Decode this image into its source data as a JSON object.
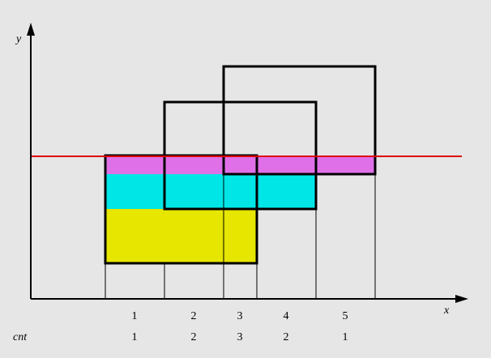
{
  "axes": {
    "x_label": "x",
    "y_label": "y"
  },
  "row_label": "cnt",
  "segments": [
    {
      "index": "1",
      "cnt": "1"
    },
    {
      "index": "2",
      "cnt": "2"
    },
    {
      "index": "3",
      "cnt": "3"
    },
    {
      "index": "4",
      "cnt": "2"
    },
    {
      "index": "5",
      "cnt": "1"
    }
  ],
  "colors": {
    "background": "#e6e6e6",
    "rectangle_outline": "#000000",
    "scan_line": "#e00000",
    "fill_top": "#e070e8",
    "fill_middle": "#00e6e6",
    "fill_bottom": "#e6e600",
    "guide_line": "#000000"
  }
}
